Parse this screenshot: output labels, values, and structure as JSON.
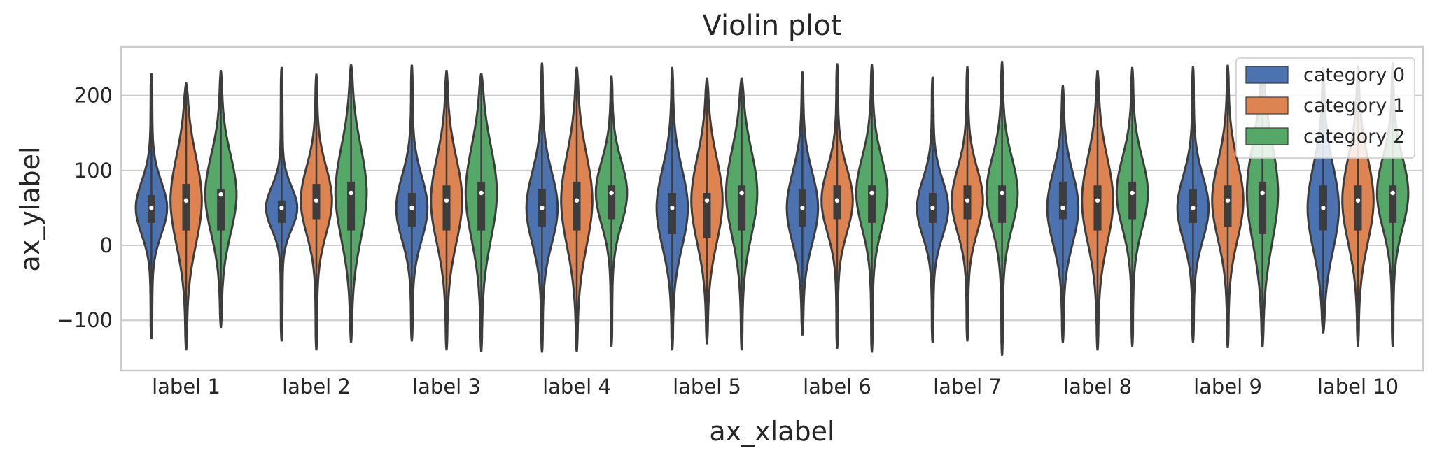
{
  "chart_data": {
    "type": "violin",
    "title": "Violin plot",
    "xlabel": "ax_xlabel",
    "ylabel": "ax_ylabel",
    "ylim": [
      -167,
      265
    ],
    "yticks": [
      -100,
      0,
      100,
      200
    ],
    "grid": true,
    "legend_position": "top-right",
    "categories": [
      "label 1",
      "label 2",
      "label 3",
      "label 4",
      "label 5",
      "label 6",
      "label 7",
      "label 8",
      "label 9",
      "label 10"
    ],
    "series": [
      {
        "name": "category 0",
        "color": "#4c72b0",
        "min": [
          -125,
          -128,
          -128,
          -143,
          -140,
          -120,
          -130,
          -130,
          -130,
          -118
        ],
        "max": [
          230,
          238,
          241,
          244,
          238,
          232,
          225,
          214,
          239,
          238
        ],
        "q1": [
          30,
          30,
          25,
          25,
          15,
          25,
          30,
          35,
          30,
          20
        ],
        "median": [
          50,
          50,
          50,
          50,
          50,
          50,
          50,
          50,
          50,
          50
        ],
        "q3": [
          67,
          60,
          70,
          75,
          70,
          75,
          70,
          85,
          75,
          80
        ]
      },
      {
        "name": "category 1",
        "color": "#dd8452",
        "min": [
          -140,
          -140,
          -140,
          -142,
          -132,
          -138,
          -128,
          -140,
          -137,
          -135
        ],
        "max": [
          217,
          229,
          234,
          238,
          224,
          243,
          239,
          234,
          241,
          240
        ],
        "q1": [
          20,
          35,
          20,
          20,
          10,
          35,
          35,
          20,
          25,
          20
        ],
        "median": [
          60,
          60,
          60,
          60,
          60,
          60,
          60,
          60,
          60,
          60
        ],
        "q3": [
          82,
          82,
          80,
          85,
          70,
          80,
          80,
          80,
          80,
          80
        ]
      },
      {
        "name": "category 2",
        "color": "#55a868",
        "min": [
          -110,
          -130,
          -142,
          -135,
          -140,
          -143,
          -147,
          -135,
          -136,
          -136
        ],
        "max": [
          234,
          242,
          230,
          227,
          224,
          242,
          246,
          238,
          235,
          245
        ],
        "q1": [
          20,
          20,
          20,
          35,
          20,
          30,
          30,
          35,
          15,
          30
        ],
        "median": [
          68,
          70,
          70,
          70,
          70,
          70,
          70,
          70,
          70,
          70
        ],
        "q3": [
          75,
          85,
          85,
          80,
          80,
          80,
          80,
          85,
          85,
          80
        ]
      }
    ]
  }
}
